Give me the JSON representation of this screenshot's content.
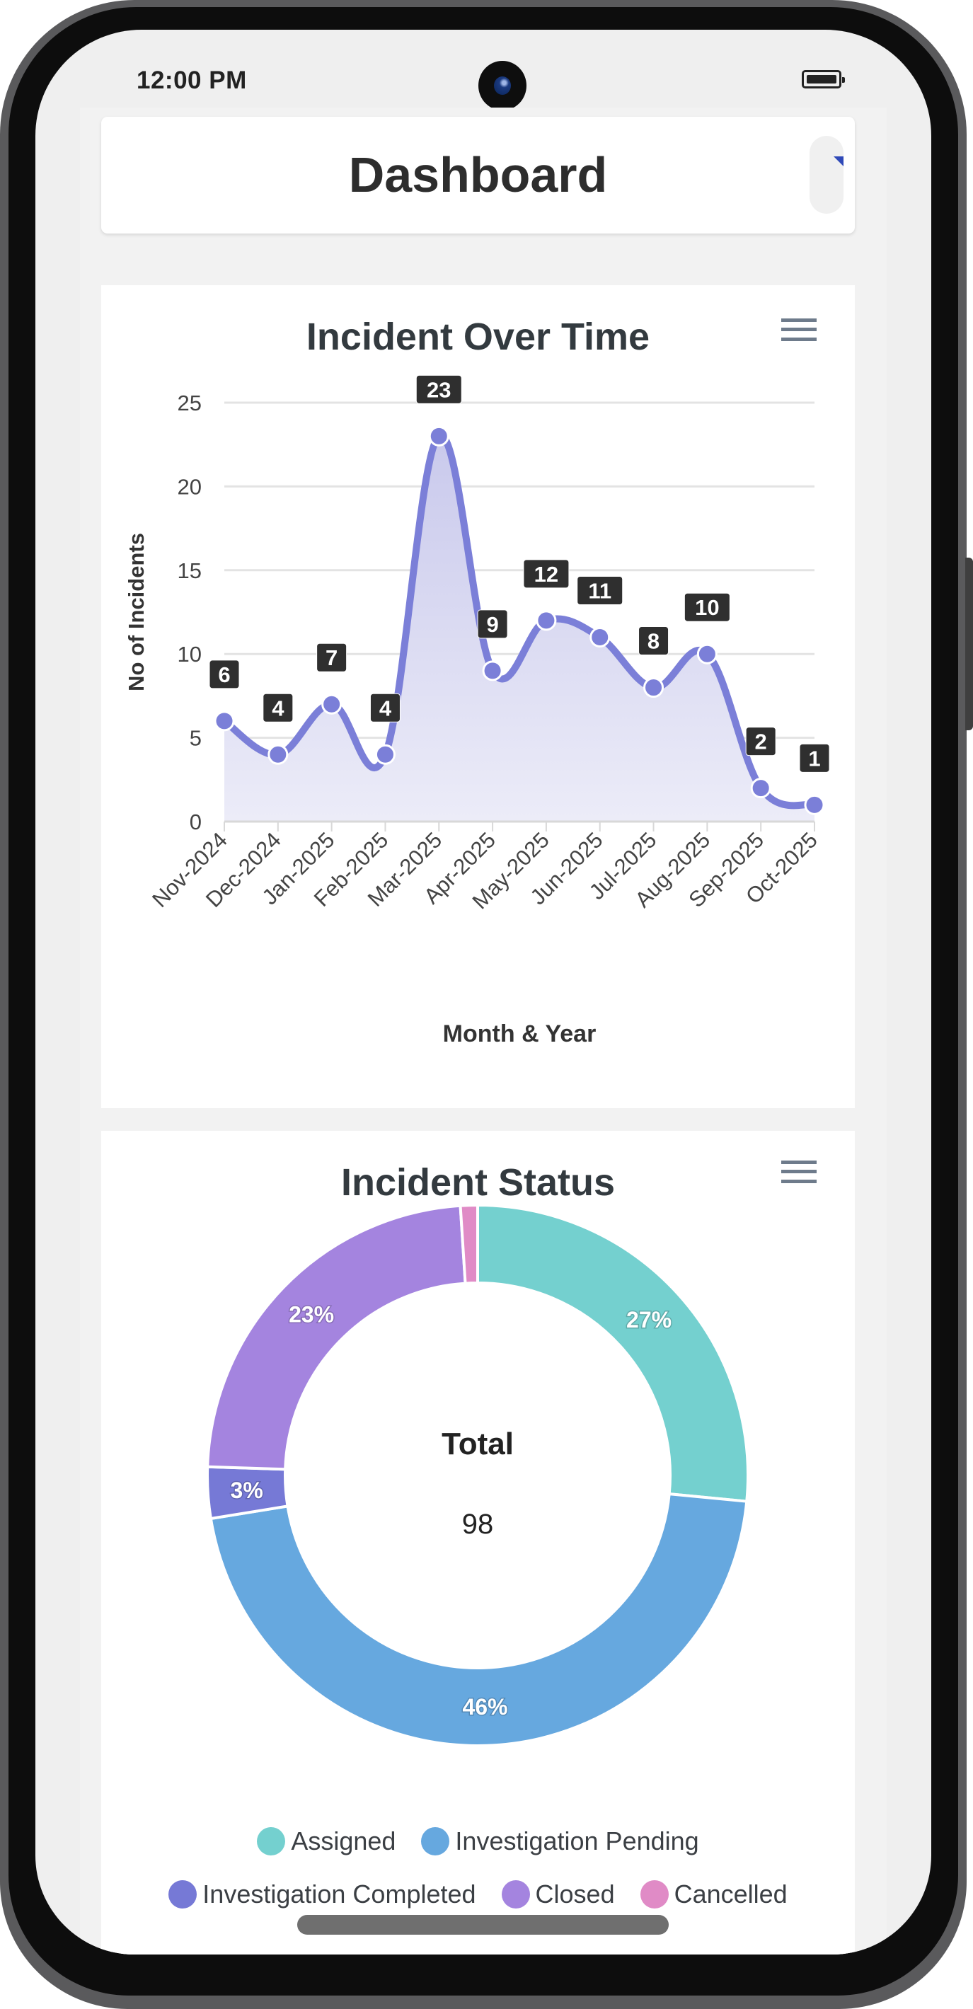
{
  "status_bar": {
    "time": "12:00 PM",
    "battery_icon": "battery-full-icon",
    "camera": "front-camera"
  },
  "header": {
    "title": "Dashboard",
    "toggle_icon": "drawer-toggle-icon"
  },
  "incident_over_time": {
    "title": "Incident Over Time",
    "menu_icon": "hamburger-menu-icon",
    "y_axis_label": "No of Incidents",
    "x_axis_label": "Month & Year",
    "y_ticks": [
      "0",
      "5",
      "10",
      "15",
      "20",
      "25"
    ],
    "line_color": "#7b7fd8",
    "fill_color": "#dcdcf2"
  },
  "incident_status": {
    "title": "Incident Status",
    "menu_icon": "hamburger-menu-icon",
    "center_label": "Total",
    "center_value": "98",
    "legend": [
      {
        "label": "Assigned",
        "color": "#74d0cf"
      },
      {
        "label": "Investigation Pending",
        "color": "#66a8df"
      },
      {
        "label": "Investigation Completed",
        "color": "#7679d6"
      },
      {
        "label": "Closed",
        "color": "#a484df"
      },
      {
        "label": "Cancelled",
        "color": "#e08bc6"
      }
    ]
  },
  "chart_data": [
    {
      "type": "area",
      "title": "Incident Over Time",
      "xlabel": "Month & Year",
      "ylabel": "No of Incidents",
      "categories": [
        "Nov-2024",
        "Dec-2024",
        "Jan-2025",
        "Feb-2025",
        "Mar-2025",
        "Apr-2025",
        "May-2025",
        "Jun-2025",
        "Jul-2025",
        "Aug-2025",
        "Sep-2025",
        "Oct-2025"
      ],
      "values": [
        6,
        4,
        7,
        4,
        23,
        9,
        12,
        11,
        8,
        10,
        2,
        1
      ],
      "data_labels": true,
      "ylim": [
        0,
        25
      ],
      "y_ticks": [
        0,
        5,
        10,
        15,
        20,
        25
      ],
      "grid": true,
      "legend": "none"
    },
    {
      "type": "pie",
      "subtype": "donut",
      "title": "Incident Status",
      "center_text": {
        "label": "Total",
        "value": 98
      },
      "categories": [
        "Assigned",
        "Investigation Pending",
        "Investigation Completed",
        "Closed",
        "Cancelled"
      ],
      "values": [
        26,
        45,
        3,
        23,
        1
      ],
      "percent_labels": [
        "27%",
        "46%",
        "3%",
        "23%",
        ""
      ],
      "colors": [
        "#74d0cf",
        "#66a8df",
        "#7679d6",
        "#a484df",
        "#e08bc6"
      ],
      "legend": "bottom"
    }
  ]
}
